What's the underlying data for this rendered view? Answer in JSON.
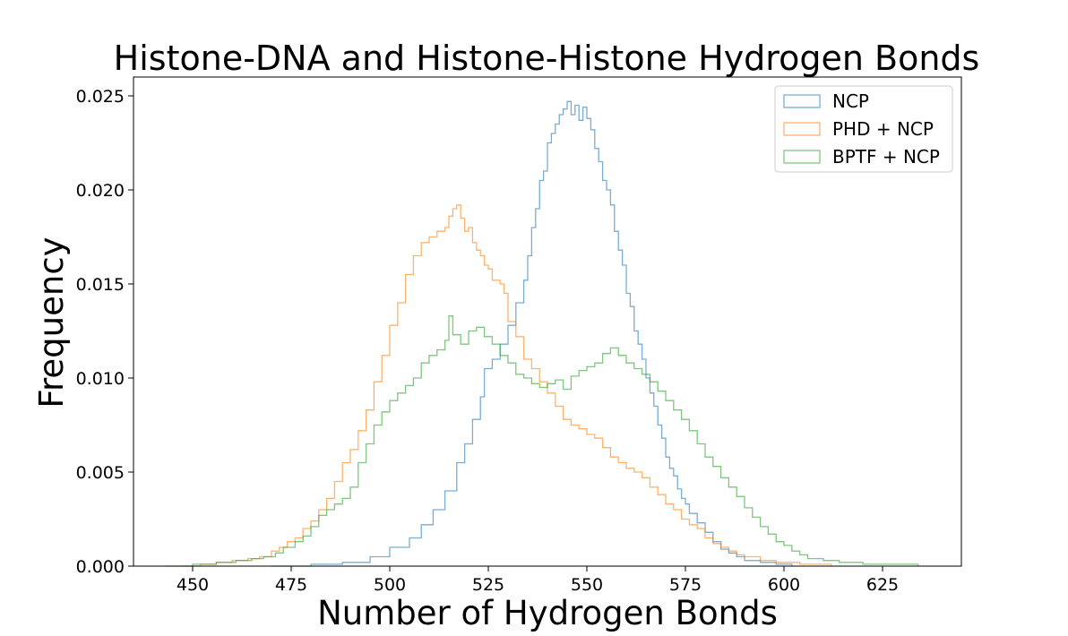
{
  "chart_data": {
    "type": "histogram-step",
    "title": "Histone-DNA and Histone-Histone Hydrogen Bonds",
    "xlabel": "Number of Hydrogen Bonds",
    "ylabel": "Frequency",
    "xlim": [
      435,
      645
    ],
    "ylim": [
      0,
      0.026
    ],
    "xticks": [
      450,
      475,
      500,
      525,
      550,
      575,
      600,
      625
    ],
    "yticks": [
      0.0,
      0.005,
      0.01,
      0.015,
      0.02,
      0.025
    ],
    "ytick_labels": [
      "0.000",
      "0.005",
      "0.010",
      "0.015",
      "0.020",
      "0.025"
    ],
    "grid": false,
    "legend_position": "top-right",
    "series": [
      {
        "name": "NCP",
        "color": "#1f77b4",
        "points": [
          [
            470,
            0
          ],
          [
            480,
            0.0001
          ],
          [
            488,
            0.0002
          ],
          [
            495,
            0.0005
          ],
          [
            500,
            0.001
          ],
          [
            505,
            0.0015
          ],
          [
            508,
            0.0022
          ],
          [
            511,
            0.003
          ],
          [
            514,
            0.004
          ],
          [
            517,
            0.0055
          ],
          [
            519,
            0.0065
          ],
          [
            521,
            0.0078
          ],
          [
            523,
            0.009
          ],
          [
            524,
            0.0105
          ],
          [
            526,
            0.011
          ],
          [
            528,
            0.0118
          ],
          [
            530,
            0.0128
          ],
          [
            532,
            0.014
          ],
          [
            534,
            0.0152
          ],
          [
            535,
            0.0165
          ],
          [
            536,
            0.018
          ],
          [
            537,
            0.019
          ],
          [
            538,
            0.0205
          ],
          [
            539,
            0.021
          ],
          [
            540,
            0.0225
          ],
          [
            541,
            0.023
          ],
          [
            542,
            0.0235
          ],
          [
            543,
            0.024
          ],
          [
            544,
            0.0243
          ],
          [
            545,
            0.0247
          ],
          [
            546,
            0.024
          ],
          [
            547,
            0.0245
          ],
          [
            548,
            0.0237
          ],
          [
            549,
            0.0244
          ],
          [
            550,
            0.0238
          ],
          [
            551,
            0.0232
          ],
          [
            552,
            0.0222
          ],
          [
            553,
            0.0215
          ],
          [
            554,
            0.0205
          ],
          [
            555,
            0.02
          ],
          [
            556,
            0.0192
          ],
          [
            557,
            0.0178
          ],
          [
            558,
            0.0168
          ],
          [
            559,
            0.016
          ],
          [
            560,
            0.0145
          ],
          [
            561,
            0.0138
          ],
          [
            562,
            0.0125
          ],
          [
            563,
            0.0118
          ],
          [
            564,
            0.011
          ],
          [
            565,
            0.01
          ],
          [
            566,
            0.0092
          ],
          [
            567,
            0.0085
          ],
          [
            568,
            0.0075
          ],
          [
            569,
            0.0068
          ],
          [
            570,
            0.0058
          ],
          [
            571,
            0.0052
          ],
          [
            572,
            0.0048
          ],
          [
            573,
            0.0041
          ],
          [
            574,
            0.0036
          ],
          [
            575,
            0.0033
          ],
          [
            576,
            0.0028
          ],
          [
            578,
            0.0023
          ],
          [
            580,
            0.0018
          ],
          [
            582,
            0.0013
          ],
          [
            584,
            0.0009
          ],
          [
            586,
            0.0007
          ],
          [
            588,
            0.0005
          ],
          [
            590,
            0.0003
          ],
          [
            594,
            0.0002
          ],
          [
            598,
            0.0001
          ],
          [
            602,
            0
          ]
        ]
      },
      {
        "name": "PHD + NCP",
        "color": "#ff7f0e",
        "points": [
          [
            447,
            0
          ],
          [
            452,
            0.0001
          ],
          [
            456,
            0.0002
          ],
          [
            460,
            0.0003
          ],
          [
            464,
            0.0004
          ],
          [
            467,
            0.0005
          ],
          [
            470,
            0.0008
          ],
          [
            472,
            0.001
          ],
          [
            474,
            0.0013
          ],
          [
            476,
            0.0015
          ],
          [
            478,
            0.002
          ],
          [
            480,
            0.0024
          ],
          [
            482,
            0.003
          ],
          [
            484,
            0.0036
          ],
          [
            486,
            0.0045
          ],
          [
            488,
            0.0055
          ],
          [
            490,
            0.0062
          ],
          [
            492,
            0.0072
          ],
          [
            494,
            0.0083
          ],
          [
            496,
            0.0098
          ],
          [
            498,
            0.0112
          ],
          [
            500,
            0.0128
          ],
          [
            502,
            0.014
          ],
          [
            504,
            0.0155
          ],
          [
            506,
            0.0165
          ],
          [
            508,
            0.0172
          ],
          [
            510,
            0.0175
          ],
          [
            512,
            0.0178
          ],
          [
            514,
            0.018
          ],
          [
            515,
            0.0186
          ],
          [
            516,
            0.019
          ],
          [
            517,
            0.0192
          ],
          [
            518,
            0.0185
          ],
          [
            519,
            0.0178
          ],
          [
            520,
            0.018
          ],
          [
            521,
            0.0172
          ],
          [
            522,
            0.0168
          ],
          [
            523,
            0.0165
          ],
          [
            524,
            0.016
          ],
          [
            525,
            0.0158
          ],
          [
            526,
            0.0152
          ],
          [
            528,
            0.015
          ],
          [
            529,
            0.0145
          ],
          [
            530,
            0.013
          ],
          [
            532,
            0.0122
          ],
          [
            534,
            0.011
          ],
          [
            536,
            0.0105
          ],
          [
            538,
            0.0098
          ],
          [
            540,
            0.0092
          ],
          [
            542,
            0.0085
          ],
          [
            544,
            0.0078
          ],
          [
            546,
            0.0075
          ],
          [
            548,
            0.0073
          ],
          [
            550,
            0.007
          ],
          [
            552,
            0.0068
          ],
          [
            554,
            0.0063
          ],
          [
            556,
            0.0058
          ],
          [
            558,
            0.0055
          ],
          [
            560,
            0.0052
          ],
          [
            562,
            0.005
          ],
          [
            564,
            0.0047
          ],
          [
            566,
            0.0042
          ],
          [
            568,
            0.0038
          ],
          [
            570,
            0.0033
          ],
          [
            572,
            0.003
          ],
          [
            574,
            0.0025
          ],
          [
            576,
            0.0022
          ],
          [
            578,
            0.002
          ],
          [
            580,
            0.0015
          ],
          [
            582,
            0.0012
          ],
          [
            584,
            0.001
          ],
          [
            586,
            0.0008
          ],
          [
            588,
            0.0006
          ],
          [
            590,
            0.0005
          ],
          [
            594,
            0.0003
          ],
          [
            598,
            0.0002
          ],
          [
            604,
            0.0001
          ],
          [
            612,
            0
          ]
        ]
      },
      {
        "name": "BPTF + NCP",
        "color": "#2ca02c",
        "points": [
          [
            443,
            0
          ],
          [
            450,
            0.0001
          ],
          [
            456,
            0.0002
          ],
          [
            461,
            0.0003
          ],
          [
            465,
            0.0004
          ],
          [
            468,
            0.0005
          ],
          [
            471,
            0.0007
          ],
          [
            473,
            0.001
          ],
          [
            476,
            0.0013
          ],
          [
            478,
            0.0016
          ],
          [
            480,
            0.0021
          ],
          [
            482,
            0.0027
          ],
          [
            484,
            0.003
          ],
          [
            486,
            0.0033
          ],
          [
            488,
            0.0036
          ],
          [
            490,
            0.0042
          ],
          [
            492,
            0.0055
          ],
          [
            494,
            0.0065
          ],
          [
            496,
            0.0075
          ],
          [
            498,
            0.0082
          ],
          [
            500,
            0.0088
          ],
          [
            502,
            0.0092
          ],
          [
            504,
            0.0096
          ],
          [
            506,
            0.01
          ],
          [
            508,
            0.0108
          ],
          [
            510,
            0.0112
          ],
          [
            512,
            0.0115
          ],
          [
            514,
            0.012
          ],
          [
            515,
            0.0133
          ],
          [
            516,
            0.0123
          ],
          [
            518,
            0.0118
          ],
          [
            520,
            0.0125
          ],
          [
            522,
            0.0127
          ],
          [
            524,
            0.0122
          ],
          [
            526,
            0.0118
          ],
          [
            528,
            0.0112
          ],
          [
            530,
            0.0108
          ],
          [
            532,
            0.0102
          ],
          [
            534,
            0.01
          ],
          [
            536,
            0.0097
          ],
          [
            538,
            0.0095
          ],
          [
            540,
            0.0097
          ],
          [
            542,
            0.0099
          ],
          [
            544,
            0.0094
          ],
          [
            546,
            0.0101
          ],
          [
            548,
            0.0104
          ],
          [
            550,
            0.0106
          ],
          [
            552,
            0.0108
          ],
          [
            554,
            0.0113
          ],
          [
            556,
            0.0116
          ],
          [
            558,
            0.0112
          ],
          [
            560,
            0.0108
          ],
          [
            562,
            0.0105
          ],
          [
            564,
            0.0102
          ],
          [
            566,
            0.0098
          ],
          [
            568,
            0.0093
          ],
          [
            570,
            0.0088
          ],
          [
            572,
            0.0083
          ],
          [
            574,
            0.0078
          ],
          [
            576,
            0.0072
          ],
          [
            578,
            0.0065
          ],
          [
            580,
            0.0058
          ],
          [
            582,
            0.0053
          ],
          [
            584,
            0.0047
          ],
          [
            586,
            0.0042
          ],
          [
            588,
            0.0037
          ],
          [
            590,
            0.0031
          ],
          [
            592,
            0.0026
          ],
          [
            594,
            0.0021
          ],
          [
            596,
            0.0017
          ],
          [
            598,
            0.0013
          ],
          [
            600,
            0.0011
          ],
          [
            602,
            0.0008
          ],
          [
            604,
            0.0006
          ],
          [
            606,
            0.0004
          ],
          [
            610,
            0.0003
          ],
          [
            614,
            0.0002
          ],
          [
            620,
            0.0001
          ],
          [
            634,
            0
          ]
        ]
      }
    ]
  }
}
